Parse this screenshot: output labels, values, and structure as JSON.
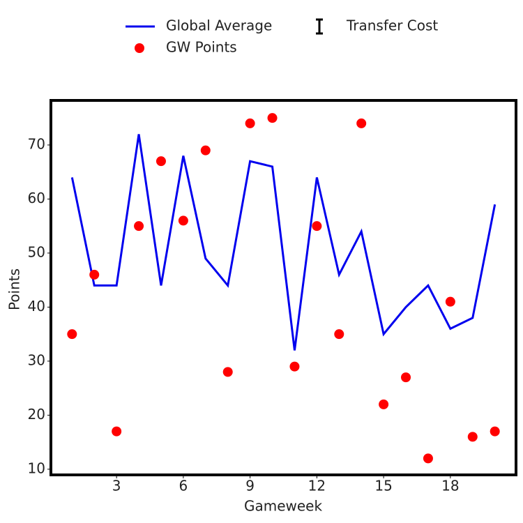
{
  "chart_data": {
    "type": "line",
    "x": [
      1,
      2,
      3,
      4,
      5,
      6,
      7,
      8,
      9,
      10,
      11,
      12,
      13,
      14,
      15,
      16,
      17,
      18,
      19,
      20
    ],
    "series": [
      {
        "name": "Global Average",
        "type": "line",
        "color": "#0000ee",
        "values": [
          64,
          44,
          44,
          72,
          44,
          68,
          49,
          44,
          67,
          66,
          32,
          64,
          46,
          54,
          35,
          40,
          44,
          36,
          38,
          59
        ]
      },
      {
        "name": "GW Points",
        "type": "scatter",
        "color": "#ff0000",
        "values": [
          35,
          46,
          17,
          55,
          67,
          56,
          69,
          28,
          74,
          75,
          29,
          55,
          35,
          74,
          22,
          27,
          12,
          41,
          16,
          17
        ]
      },
      {
        "name": "Transfer Cost",
        "type": "errorbar",
        "color": "#000000"
      }
    ],
    "xlabel": "Gameweek",
    "ylabel": "Points",
    "xlim": [
      0.05,
      20.95
    ],
    "xticks": [
      3,
      6,
      9,
      12,
      15,
      18
    ],
    "ylim": [
      8.95,
      78.25
    ],
    "yticks": [
      10,
      20,
      30,
      40,
      50,
      60,
      70
    ]
  }
}
